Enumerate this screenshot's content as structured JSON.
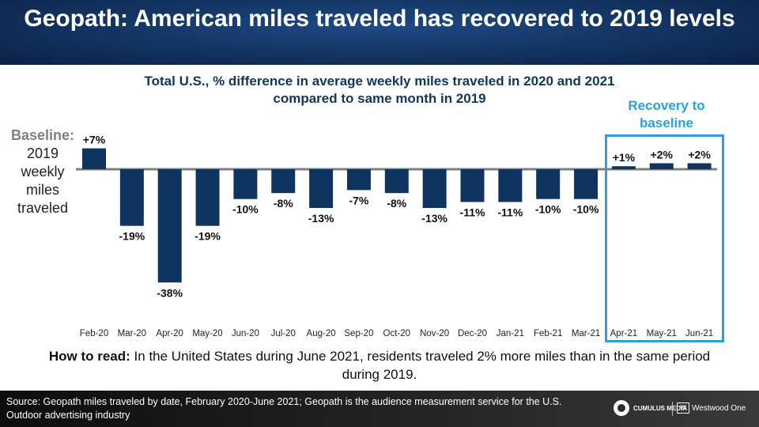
{
  "header": {
    "title": "Geopath: American miles traveled has recovered to 2019 levels"
  },
  "subtitle": "Total U.S., % difference in average weekly miles traveled in 2020 and 2021 compared to same month in 2019",
  "baseline_label": {
    "bold": "Baseline:",
    "rest": "2019 weekly miles traveled"
  },
  "recovery_label": "Recovery to baseline",
  "how_to_read": {
    "lead": "How to read:",
    "text": "In the United States during June 2021, residents traveled 2% more miles than in the same period during 2019."
  },
  "footer": {
    "source": "Source: Geopath miles traveled by date, February 2020-June 2021; Geopath is the audience measurement service for the U.S. Outdoor advertising industry",
    "logo_cumulus": "CUMULUS MEDIA",
    "logo_westwood": "Westwood One"
  },
  "colors": {
    "bar": "#0f3460",
    "baseline_line": "#7f7f7f",
    "recovery_accent": "#2da1d9",
    "header_bg": "#143766"
  },
  "chart_data": {
    "type": "bar",
    "categories": [
      "Feb-20",
      "Mar-20",
      "Apr-20",
      "May-20",
      "Jun-20",
      "Jul-20",
      "Aug-20",
      "Sep-20",
      "Oct-20",
      "Nov-20",
      "Dec-20",
      "Jan-21",
      "Feb-21",
      "Mar-21",
      "Apr-21",
      "May-21",
      "Jun-21"
    ],
    "values": [
      7,
      -19,
      -38,
      -19,
      -10,
      -8,
      -13,
      -7,
      -8,
      -13,
      -11,
      -11,
      -10,
      -10,
      1,
      2,
      2
    ],
    "labels": [
      "+7%",
      "-19%",
      "-38%",
      "-19%",
      "-10%",
      "-8%",
      "-13%",
      "-7%",
      "-8%",
      "-13%",
      "-11%",
      "-11%",
      "-10%",
      "-10%",
      "+1%",
      "+2%",
      "+2%"
    ],
    "title": "Total U.S., % difference in average weekly miles traveled in 2020 and 2021 compared to same month in 2019",
    "xlabel": "",
    "ylabel": "",
    "grid": false,
    "highlight": {
      "label": "Recovery to baseline",
      "categories": [
        "Apr-21",
        "May-21",
        "Jun-21"
      ]
    }
  }
}
